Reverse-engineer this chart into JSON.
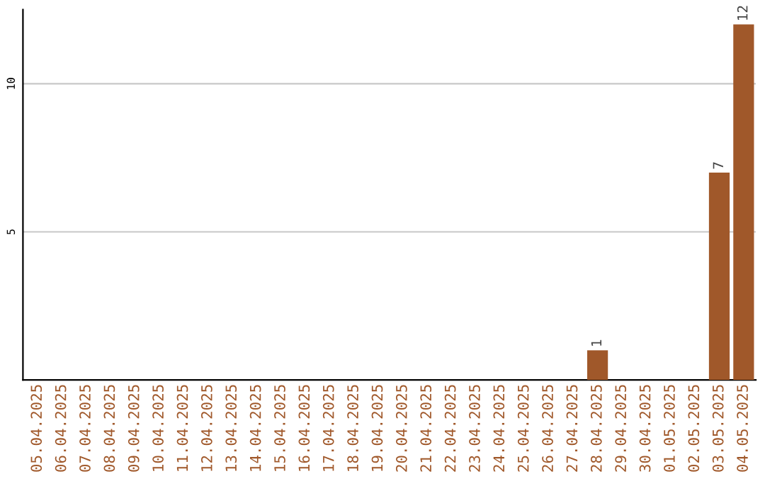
{
  "chart_data": {
    "type": "bar",
    "categories": [
      "05.04.2025",
      "06.04.2025",
      "07.04.2025",
      "08.04.2025",
      "09.04.2025",
      "10.04.2025",
      "11.04.2025",
      "12.04.2025",
      "13.04.2025",
      "14.04.2025",
      "15.04.2025",
      "16.04.2025",
      "17.04.2025",
      "18.04.2025",
      "19.04.2025",
      "20.04.2025",
      "21.04.2025",
      "22.04.2025",
      "23.04.2025",
      "24.04.2025",
      "25.04.2025",
      "26.04.2025",
      "27.04.2025",
      "28.04.2025",
      "29.04.2025",
      "30.04.2025",
      "01.05.2025",
      "02.05.2025",
      "03.05.2025",
      "04.05.2025"
    ],
    "values": [
      0,
      0,
      0,
      0,
      0,
      0,
      0,
      0,
      0,
      0,
      0,
      0,
      0,
      0,
      0,
      0,
      0,
      0,
      0,
      0,
      0,
      0,
      0,
      1,
      0,
      0,
      0,
      0,
      7,
      12
    ],
    "value_labels": [
      null,
      null,
      null,
      null,
      null,
      null,
      null,
      null,
      null,
      null,
      null,
      null,
      null,
      null,
      null,
      null,
      null,
      null,
      null,
      null,
      null,
      null,
      null,
      "1",
      null,
      null,
      null,
      null,
      "7",
      "12"
    ],
    "color": "#a0582a",
    "ylim": [
      0,
      12.5
    ],
    "yticks": [
      5,
      10
    ],
    "grid": "y"
  }
}
